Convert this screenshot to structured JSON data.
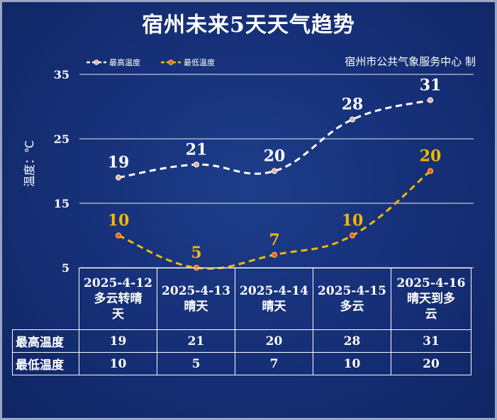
{
  "title": "宿州未来5天天气趋势",
  "source": "宿州市公共气象服务中心 制",
  "chart_data": {
    "type": "line",
    "ylabel": "温度：℃",
    "ylim": [
      5,
      35
    ],
    "yticks": [
      5,
      15,
      25,
      35
    ],
    "grid": true,
    "legend_position": "top-left",
    "categories": [
      "2025-4-12 多云转晴天",
      "2025-4-13 晴天",
      "2025-4-14 晴天",
      "2025-4-15 多云",
      "2025-4-16 晴天到多云"
    ],
    "series": [
      {
        "name": "最高温度",
        "values": [
          19,
          21,
          20,
          28,
          31
        ],
        "color": "#ffffff"
      },
      {
        "name": "最低温度",
        "values": [
          10,
          5,
          7,
          10,
          20
        ],
        "color": "#f5b800"
      }
    ]
  },
  "table": {
    "days": [
      {
        "date": "2025-4-12",
        "weather": "多云转晴\n天"
      },
      {
        "date": "2025-4-13",
        "weather": "晴天"
      },
      {
        "date": "2025-4-14",
        "weather": "晴天"
      },
      {
        "date": "2025-4-15",
        "weather": "多云"
      },
      {
        "date": "2025-4-16",
        "weather": "晴天到多\n云"
      }
    ],
    "rows": [
      {
        "label": "最高温度",
        "values": [
          "19",
          "21",
          "20",
          "28",
          "31"
        ]
      },
      {
        "label": "最低温度",
        "values": [
          "10",
          "5",
          "7",
          "10",
          "20"
        ]
      }
    ]
  }
}
